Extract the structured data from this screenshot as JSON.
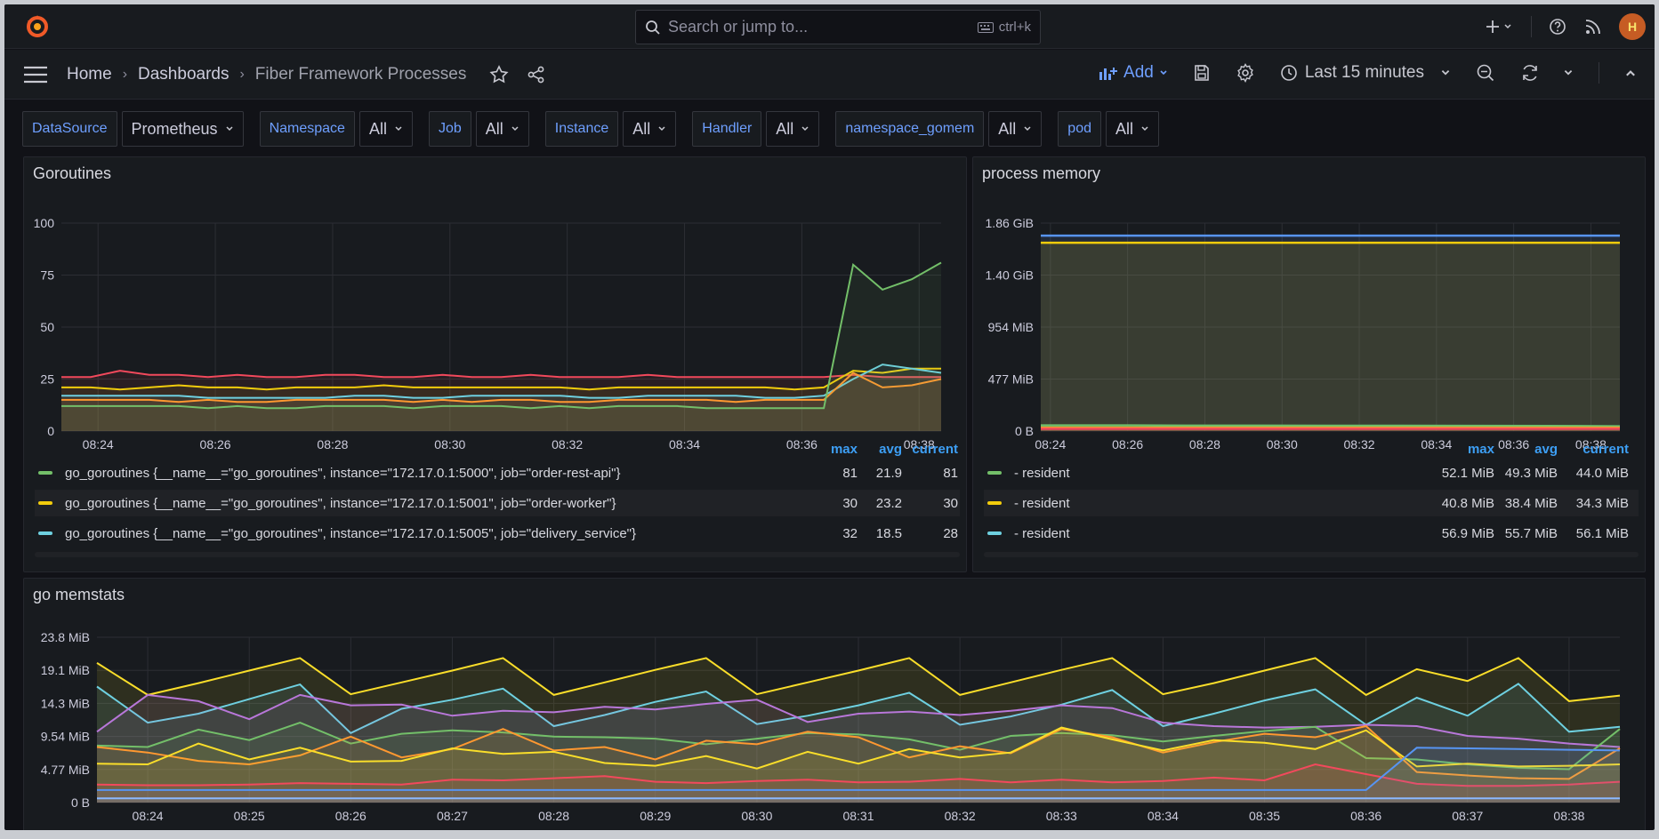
{
  "topbar": {
    "search_placeholder": "Search or jump to...",
    "search_shortcut": "ctrl+k",
    "avatar_initials": "H"
  },
  "breadcrumb": {
    "home": "Home",
    "dashboards": "Dashboards",
    "current": "Fiber Framework Processes"
  },
  "toolbar": {
    "add_label": "Add",
    "time_range": "Last 15 minutes"
  },
  "variables": [
    {
      "label": "DataSource",
      "value": "Prometheus"
    },
    {
      "label": "Namespace",
      "value": "All"
    },
    {
      "label": "Job",
      "value": "All"
    },
    {
      "label": "Instance",
      "value": "All"
    },
    {
      "label": "Handler",
      "value": "All"
    },
    {
      "label": "namespace_gomem",
      "value": "All"
    },
    {
      "label": "pod",
      "value": "All"
    }
  ],
  "colors": {
    "accent": "#6e9fff",
    "green": "#73bf69",
    "yellow": "#f2cc0c",
    "cyan": "#6ed0e0",
    "red": "#f2495c",
    "orange": "#ff9830",
    "blue": "#5794f2",
    "purple": "#b877d9",
    "legend_header": "#3d9ff5"
  },
  "panels": {
    "goroutines": {
      "title": "Goroutines",
      "legend_headers": [
        "max",
        "avg",
        "current"
      ],
      "legend": [
        {
          "name": "go_goroutines {__name__=\"go_goroutines\", instance=\"172.17.0.1:5000\", job=\"order-rest-api\"}",
          "color": "#73bf69",
          "max": "81",
          "avg": "21.9",
          "current": "81"
        },
        {
          "name": "go_goroutines {__name__=\"go_goroutines\", instance=\"172.17.0.1:5001\", job=\"order-worker\"}",
          "color": "#f2cc0c",
          "max": "30",
          "avg": "23.2",
          "current": "30"
        },
        {
          "name": "go_goroutines {__name__=\"go_goroutines\", instance=\"172.17.0.1:5005\", job=\"delivery_service\"}",
          "color": "#6ed0e0",
          "max": "32",
          "avg": "18.5",
          "current": "28"
        }
      ]
    },
    "memory": {
      "title": "process memory",
      "legend_headers": [
        "max",
        "avg",
        "current"
      ],
      "legend": [
        {
          "name": "- resident",
          "color": "#73bf69",
          "max": "52.1 MiB",
          "avg": "49.3 MiB",
          "current": "44.0 MiB"
        },
        {
          "name": "- resident",
          "color": "#f2cc0c",
          "max": "40.8 MiB",
          "avg": "38.4 MiB",
          "current": "34.3 MiB"
        },
        {
          "name": "- resident",
          "color": "#6ed0e0",
          "max": "56.9 MiB",
          "avg": "55.7 MiB",
          "current": "56.1 MiB"
        }
      ]
    },
    "memstats": {
      "title": "go memstats"
    }
  },
  "chart_data": [
    {
      "type": "line",
      "title": "Goroutines",
      "x": [
        "08:23:45",
        "08:24:15",
        "08:24:45",
        "08:25:15",
        "08:25:45",
        "08:26:15",
        "08:26:45",
        "08:27:15",
        "08:27:45",
        "08:28:15",
        "08:28:45",
        "08:29:15",
        "08:29:45",
        "08:30:15",
        "08:30:45",
        "08:31:15",
        "08:31:45",
        "08:32:15",
        "08:32:45",
        "08:33:15",
        "08:33:45",
        "08:34:15",
        "08:34:45",
        "08:35:15",
        "08:35:45",
        "08:36:15",
        "08:36:45",
        "08:37:15",
        "08:37:45",
        "08:38:15",
        "08:38:45"
      ],
      "x_ticks": [
        "08:24",
        "08:26",
        "08:28",
        "08:30",
        "08:32",
        "08:34",
        "08:36",
        "08:38"
      ],
      "y_ticks": [
        "0",
        "25",
        "50",
        "75",
        "100"
      ],
      "ylim": [
        0,
        100
      ],
      "grid": true,
      "series": [
        {
          "color": "#f2495c",
          "values": [
            26,
            26,
            29,
            27,
            27,
            26,
            27,
            26,
            26,
            27,
            27,
            26,
            26,
            27,
            26,
            26,
            27,
            26,
            26,
            26,
            27,
            26,
            26,
            26,
            26,
            26,
            26,
            27,
            26,
            26,
            26
          ]
        },
        {
          "color": "#f2cc0c",
          "values": [
            21,
            21,
            20,
            21,
            22,
            21,
            21,
            20,
            21,
            21,
            21,
            22,
            21,
            21,
            21,
            21,
            21,
            21,
            20,
            21,
            21,
            21,
            21,
            21,
            21,
            20,
            21,
            29,
            28,
            30,
            30
          ]
        },
        {
          "color": "#6ed0e0",
          "values": [
            17,
            17,
            17,
            17,
            17,
            16,
            16,
            16,
            16,
            16,
            17,
            17,
            16,
            16,
            17,
            17,
            17,
            17,
            16,
            16,
            17,
            17,
            17,
            17,
            16,
            16,
            17,
            25,
            32,
            30,
            28
          ]
        },
        {
          "color": "#ff9830",
          "values": [
            15,
            15,
            15,
            15,
            14,
            15,
            14,
            14,
            15,
            15,
            15,
            15,
            14,
            15,
            14,
            15,
            15,
            14,
            14,
            15,
            15,
            15,
            15,
            14,
            15,
            15,
            15,
            28,
            21,
            22,
            25
          ]
        },
        {
          "color": "#73bf69",
          "values": [
            12,
            12,
            12,
            12,
            12,
            11,
            12,
            11,
            11,
            12,
            12,
            12,
            11,
            12,
            12,
            12,
            11,
            12,
            11,
            12,
            12,
            12,
            11,
            11,
            11,
            11,
            11,
            80,
            68,
            73,
            81
          ]
        }
      ]
    },
    {
      "type": "line",
      "title": "process memory",
      "x_ticks": [
        "08:24",
        "08:26",
        "08:28",
        "08:30",
        "08:32",
        "08:34",
        "08:36",
        "08:38"
      ],
      "y_ticks": [
        "0 B",
        "477 MiB",
        "954 MiB",
        "1.40 GiB",
        "1.86 GiB"
      ],
      "ylim_mib": [
        0,
        1905
      ],
      "grid": true,
      "series": [
        {
          "color": "#5794f2",
          "values_mib": [
            1790,
            1790,
            1790,
            1790,
            1790,
            1790,
            1790,
            1790,
            1790
          ]
        },
        {
          "color": "#f2cc0c",
          "values_mib": [
            1725,
            1725,
            1725,
            1725,
            1725,
            1725,
            1725,
            1725,
            1725
          ]
        },
        {
          "color": "#73bf69",
          "values_mib": [
            52,
            52,
            50,
            50,
            49,
            49,
            48,
            47,
            44
          ]
        },
        {
          "color": "#ff9830",
          "values_mib": [
            30,
            30,
            30,
            30,
            30,
            30,
            30,
            30,
            30
          ]
        },
        {
          "color": "#f2495c",
          "values_mib": [
            20,
            20,
            20,
            20,
            20,
            20,
            20,
            20,
            20
          ]
        }
      ]
    },
    {
      "type": "area",
      "title": "go memstats",
      "x_ticks": [
        "08:24",
        "08:25",
        "08:26",
        "08:27",
        "08:28",
        "08:29",
        "08:30",
        "08:31",
        "08:32",
        "08:33",
        "08:34",
        "08:35",
        "08:36",
        "08:37",
        "08:38"
      ],
      "y_ticks": [
        "0 B",
        "4.77 MiB",
        "9.54 MiB",
        "14.3 MiB",
        "19.1 MiB",
        "23.8 MiB"
      ],
      "ylim_mib": [
        0,
        23.8
      ],
      "grid": true,
      "series": [
        {
          "color": "#fade2a",
          "values": [
            20.1,
            15.5,
            17.2,
            19.0,
            20.8,
            15.6,
            17.3,
            19.0,
            20.8,
            15.5,
            17.3,
            19.1,
            20.8,
            15.6,
            17.3,
            19.0,
            20.8,
            15.5,
            17.3,
            19.1,
            20.8,
            15.6,
            17.2,
            19.0,
            20.8,
            15.5,
            19.2,
            17.5,
            20.8,
            14.6,
            15.4
          ]
        },
        {
          "color": "#6ed0e0",
          "values": [
            16.7,
            11.5,
            12.8,
            14.9,
            17.0,
            10.0,
            13.5,
            14.8,
            16.4,
            11.0,
            12.6,
            14.5,
            16.0,
            11.3,
            12.5,
            14.0,
            15.8,
            11.2,
            12.4,
            14.1,
            16.2,
            11.0,
            12.8,
            14.7,
            16.3,
            11.2,
            15.1,
            12.5,
            17.1,
            10.2,
            10.9
          ]
        },
        {
          "color": "#b877d9",
          "values": [
            10.2,
            15.5,
            14.6,
            12.0,
            15.5,
            14.0,
            14.1,
            12.5,
            13.2,
            13.0,
            13.8,
            13.4,
            14.2,
            14.8,
            11.6,
            12.8,
            13.1,
            12.6,
            13.2,
            14.0,
            13.6,
            11.5,
            11.0,
            10.8,
            10.9,
            11.2,
            11.0,
            9.6,
            9.2,
            8.5,
            8.0
          ]
        },
        {
          "color": "#73bf69",
          "values": [
            8.2,
            8.0,
            10.5,
            9.0,
            11.5,
            8.5,
            9.9,
            10.4,
            10.1,
            9.5,
            9.4,
            9.2,
            8.4,
            9.2,
            10.0,
            9.8,
            9.1,
            7.6,
            9.6,
            10.0,
            9.7,
            8.8,
            9.6,
            10.3,
            10.9,
            6.4,
            6.2,
            5.5,
            5.0,
            4.8,
            10.6
          ]
        },
        {
          "color": "#ff9830",
          "values": [
            8.0,
            7.2,
            6.0,
            5.5,
            6.8,
            9.5,
            6.5,
            7.7,
            10.6,
            7.5,
            8.0,
            6.2,
            8.9,
            8.4,
            10.2,
            9.4,
            6.5,
            8.1,
            7.1,
            10.6,
            9.4,
            7.2,
            8.7,
            9.9,
            9.4,
            11.0,
            4.4,
            3.9,
            3.5,
            3.4,
            7.8
          ]
        },
        {
          "color": "#fade2a",
          "values": [
            5.6,
            5.5,
            8.5,
            6.2,
            7.9,
            5.9,
            6.0,
            7.8,
            7.0,
            7.3,
            5.7,
            5.3,
            6.7,
            4.9,
            7.3,
            5.6,
            7.7,
            6.5,
            7.2,
            10.8,
            9.1,
            7.5,
            9.0,
            8.6,
            7.7,
            10.4,
            5.2,
            5.6,
            5.2,
            5.3,
            5.5
          ]
        },
        {
          "color": "#f2495c",
          "values": [
            2.6,
            2.5,
            2.5,
            2.6,
            2.8,
            2.7,
            2.6,
            3.3,
            3.2,
            3.5,
            3.8,
            3.0,
            2.8,
            3.1,
            3.3,
            2.9,
            3.0,
            3.4,
            2.9,
            3.3,
            2.9,
            3.1,
            3.6,
            3.2,
            5.5,
            4.1,
            2.7,
            2.4,
            2.4,
            2.6,
            3.0
          ]
        },
        {
          "color": "#5794f2",
          "values": [
            1.8,
            1.8,
            1.8,
            1.8,
            1.8,
            1.8,
            1.8,
            1.8,
            1.8,
            1.8,
            1.8,
            1.8,
            1.8,
            1.8,
            1.8,
            1.8,
            1.8,
            1.8,
            1.8,
            1.8,
            1.8,
            1.8,
            1.8,
            1.8,
            1.8,
            1.8,
            7.9,
            7.8,
            7.7,
            7.6,
            7.5
          ]
        },
        {
          "color": "#8ab8ff",
          "values": [
            0.6,
            0.6,
            0.6,
            0.6,
            0.6,
            0.6,
            0.6,
            0.6,
            0.6,
            0.6,
            0.6,
            0.6,
            0.6,
            0.6,
            0.6,
            0.6,
            0.6,
            0.6,
            0.6,
            0.6,
            0.6,
            0.6,
            0.6,
            0.6,
            0.6,
            0.6,
            0.6,
            0.6,
            0.6,
            0.6,
            0.6
          ]
        }
      ]
    }
  ]
}
